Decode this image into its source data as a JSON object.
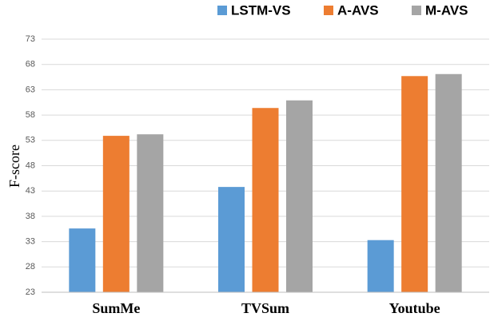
{
  "chart_data": {
    "type": "bar",
    "categories": [
      "SumMe",
      "TVSum",
      "Youtube"
    ],
    "series": [
      {
        "name": "LSTM-VS",
        "color": "#5b9bd5",
        "values": [
          35.6,
          43.8,
          33.3
        ]
      },
      {
        "name": "A-AVS",
        "color": "#ed7d31",
        "values": [
          53.9,
          59.4,
          65.7
        ]
      },
      {
        "name": "M-AVS",
        "color": "#a5a5a5",
        "values": [
          54.2,
          60.9,
          66.1
        ]
      }
    ],
    "y_label": "F-score",
    "ylim": [
      23,
      73
    ],
    "yticks": [
      23,
      28,
      33,
      38,
      43,
      48,
      53,
      58,
      63,
      68,
      73
    ],
    "grid": true,
    "legend": "top-right"
  }
}
